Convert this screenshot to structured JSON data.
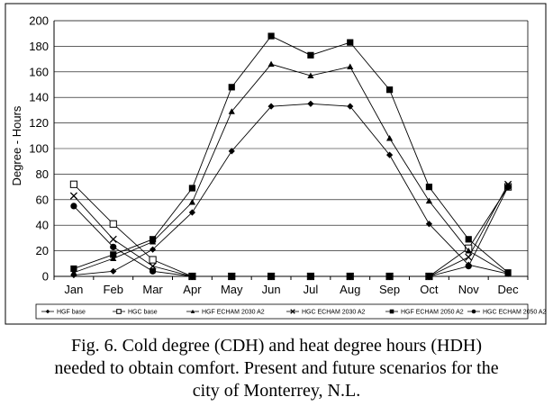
{
  "chart_data": {
    "type": "line",
    "categories": [
      "Jan",
      "Feb",
      "Mar",
      "Apr",
      "May",
      "Jun",
      "Jul",
      "Aug",
      "Sep",
      "Oct",
      "Nov",
      "Dec"
    ],
    "ylabel": "Degree - Hours",
    "ylim": [
      0,
      200
    ],
    "yticks": [
      0,
      20,
      40,
      60,
      80,
      100,
      120,
      140,
      160,
      180,
      200
    ],
    "grid": true,
    "legend_position": "bottom",
    "series": [
      {
        "name": "HGF base",
        "marker": "diamond",
        "values": [
          1,
          4,
          21,
          50,
          98,
          133,
          135,
          133,
          95,
          41,
          9,
          2
        ]
      },
      {
        "name": "HGC base",
        "marker": "square-open",
        "values": [
          72,
          41,
          13,
          0,
          0,
          0,
          0,
          0,
          0,
          0,
          22,
          70
        ]
      },
      {
        "name": "HGF ECHAM 2030 A2",
        "marker": "triangle",
        "values": [
          3,
          14,
          27,
          58,
          129,
          166,
          157,
          164,
          108,
          59,
          20,
          2
        ]
      },
      {
        "name": "HGC ECHAM 2030 A2",
        "marker": "x",
        "values": [
          63,
          29,
          8,
          0,
          0,
          0,
          0,
          0,
          0,
          0,
          15,
          72
        ]
      },
      {
        "name": "HGF ECHAM 2050 A2",
        "marker": "square",
        "values": [
          6,
          17,
          29,
          69,
          148,
          188,
          173,
          183,
          146,
          70,
          29,
          3
        ]
      },
      {
        "name": "HGC ECHAM 2050 A2",
        "marker": "circle",
        "values": [
          55,
          23,
          4,
          0,
          0,
          0,
          0,
          0,
          0,
          0,
          8,
          70
        ]
      }
    ]
  },
  "caption": {
    "line1": "Fig. 6. Cold degree (CDH) and heat degree hours (HDH)",
    "line2": "needed to obtain comfort. Present and future scenarios for the",
    "line3": "city of Monterrey, N.L."
  }
}
